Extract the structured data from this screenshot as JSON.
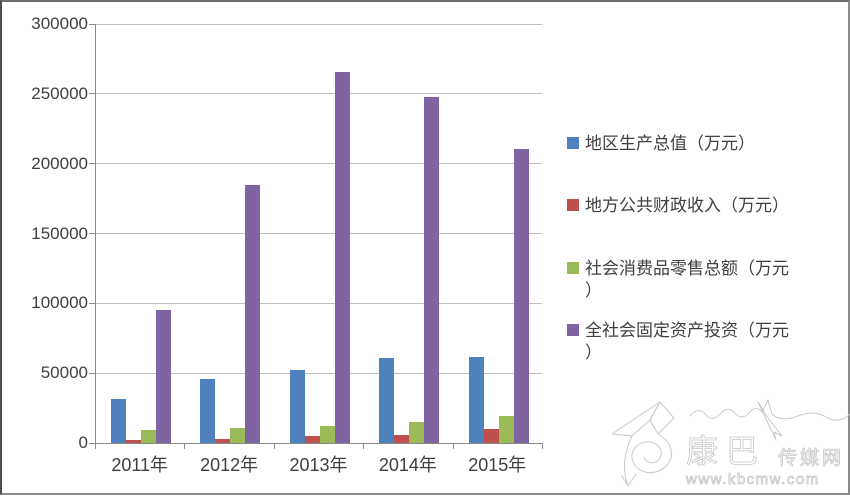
{
  "chart_data": {
    "type": "bar",
    "title": "",
    "xlabel": "",
    "ylabel": "",
    "categories": [
      "2011年",
      "2012年",
      "2013年",
      "2014年",
      "2015年"
    ],
    "series": [
      {
        "name": "地区生产总值（万元）",
        "color": "#4F81BD",
        "values": [
          31500,
          45500,
          52500,
          61000,
          61600
        ]
      },
      {
        "name": "地方公共财政收入（万元）",
        "color": "#C0504D",
        "values": [
          2500,
          3200,
          4800,
          6000,
          9800
        ]
      },
      {
        "name": "社会消费品零售总额（万元）",
        "color": "#9BBB59",
        "values": [
          9000,
          10800,
          12500,
          15000,
          19500
        ]
      },
      {
        "name": "全社会固定资产投资（万元）",
        "color": "#8064A2",
        "values": [
          95500,
          184500,
          265500,
          248000,
          210500
        ]
      }
    ],
    "ylim": [
      0,
      300000
    ],
    "ytick_step": 50000,
    "ytick_labels": [
      "0",
      "50000",
      "100000",
      "150000",
      "200000",
      "250000",
      "300000"
    ],
    "grid": true,
    "legend_position": "right",
    "legend": [
      {
        "lines": [
          "地区生产总值（万元）"
        ],
        "color": "#4F81BD"
      },
      {
        "lines": [
          "地方公共财政收入（万元）"
        ],
        "color": "#C0504D"
      },
      {
        "lines": [
          "社会消费品零售总额（万元",
          "）"
        ],
        "color": "#9BBB59"
      },
      {
        "lines": [
          "全社会固定资产投资（万元",
          "）"
        ],
        "color": "#8064A2"
      }
    ]
  },
  "watermark": {
    "brand_large": "康巴",
    "brand_small": "传媒网",
    "url": "www.kbcmw.com"
  },
  "colors": {
    "background": "#FFFFFF",
    "gridline": "#BFBFBF",
    "axis": "#898989",
    "text": "#3F3F3F",
    "frame_border": "#8A8A8A",
    "watermark": "#C9C9C9",
    "series_blue": "#4F81BD",
    "series_red": "#C0504D",
    "series_green": "#9BBB59",
    "series_purple": "#8064A2"
  }
}
